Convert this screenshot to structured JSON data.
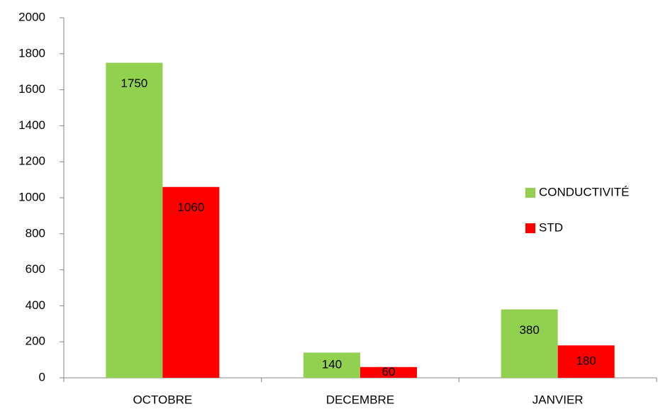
{
  "chart_data": {
    "type": "bar",
    "categories": [
      "OCTOBRE",
      "DECEMBRE",
      "JANVIER"
    ],
    "series": [
      {
        "name": "CONDUCTIVITÉ",
        "color": "#92d050",
        "values": [
          1750,
          140,
          380
        ]
      },
      {
        "name": "STD",
        "color": "#ff0000",
        "values": [
          1060,
          60,
          180
        ]
      }
    ],
    "ylim": [
      0,
      2000
    ],
    "yticks": [
      0,
      200,
      400,
      600,
      800,
      1000,
      1200,
      1400,
      1600,
      1800,
      2000
    ],
    "legend": "right"
  }
}
